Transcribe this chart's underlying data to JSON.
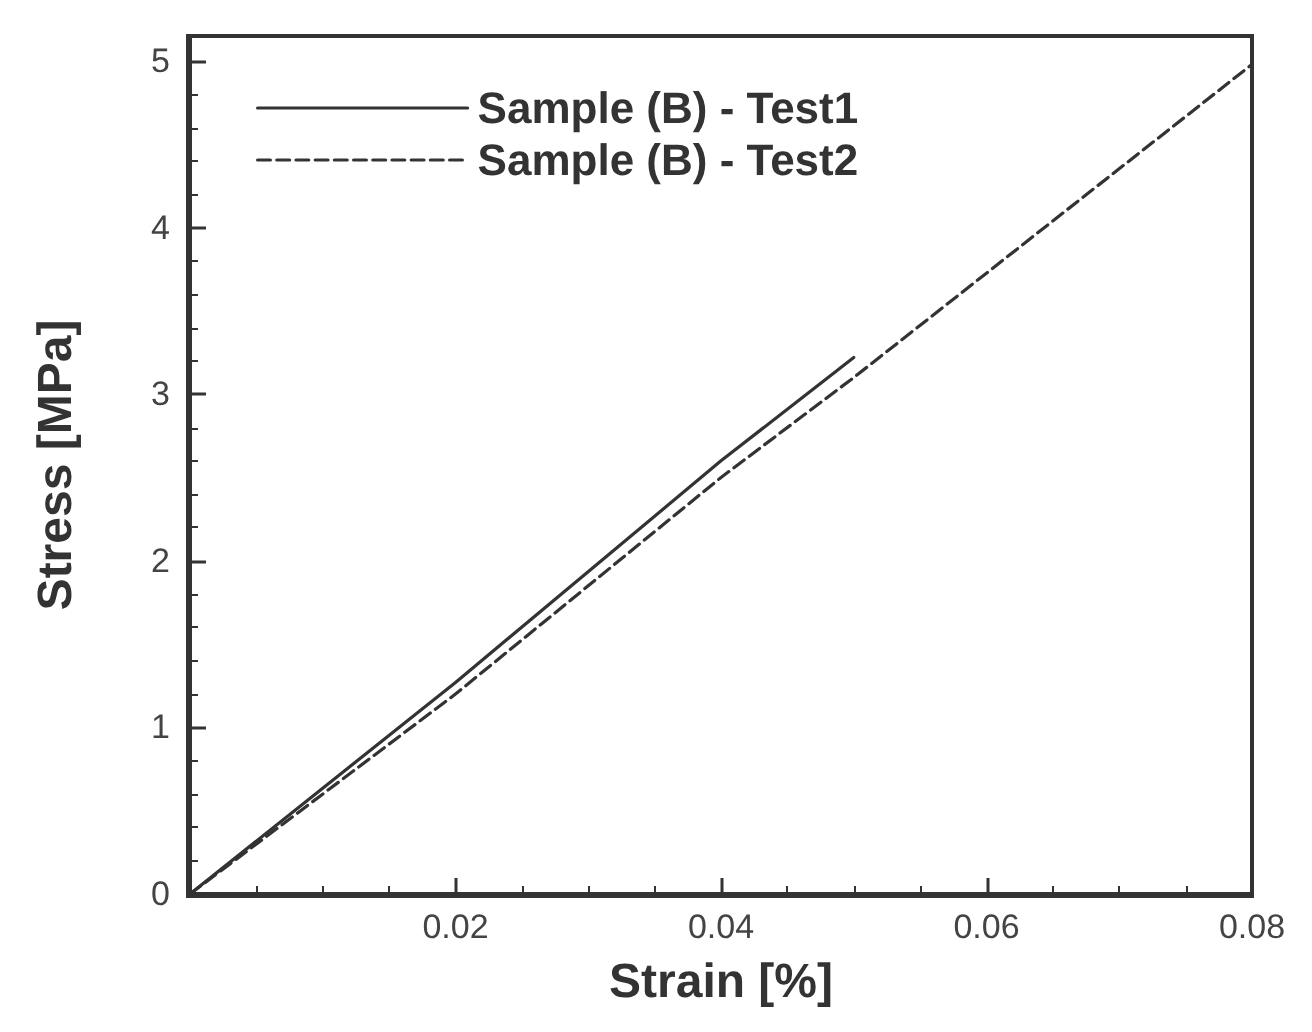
{
  "chart_data": {
    "type": "line",
    "xlabel": "Strain [%]",
    "ylabel": "Stress [MPa]",
    "xlim": [
      0,
      0.08
    ],
    "ylim": [
      0,
      5.15
    ],
    "xticks": [
      0.02,
      0.04,
      0.06,
      0.08
    ],
    "yticks": [
      0,
      1,
      2,
      3,
      4,
      5
    ],
    "grid": false,
    "legend": "top left",
    "marker": "none",
    "series": [
      {
        "name": "Sample (B) - Test1",
        "color": "#333333",
        "line_style": "solid",
        "x": [
          0,
          0.02,
          0.04,
          0.05
        ],
        "values": [
          0,
          1.27,
          2.6,
          3.22
        ]
      },
      {
        "name": "Sample (B) - Test2",
        "color": "#333333",
        "line_style": "dashed",
        "x": [
          0,
          0.02,
          0.04,
          0.05,
          0.08
        ],
        "values": [
          0,
          1.2,
          2.5,
          3.1,
          4.98
        ]
      }
    ]
  }
}
